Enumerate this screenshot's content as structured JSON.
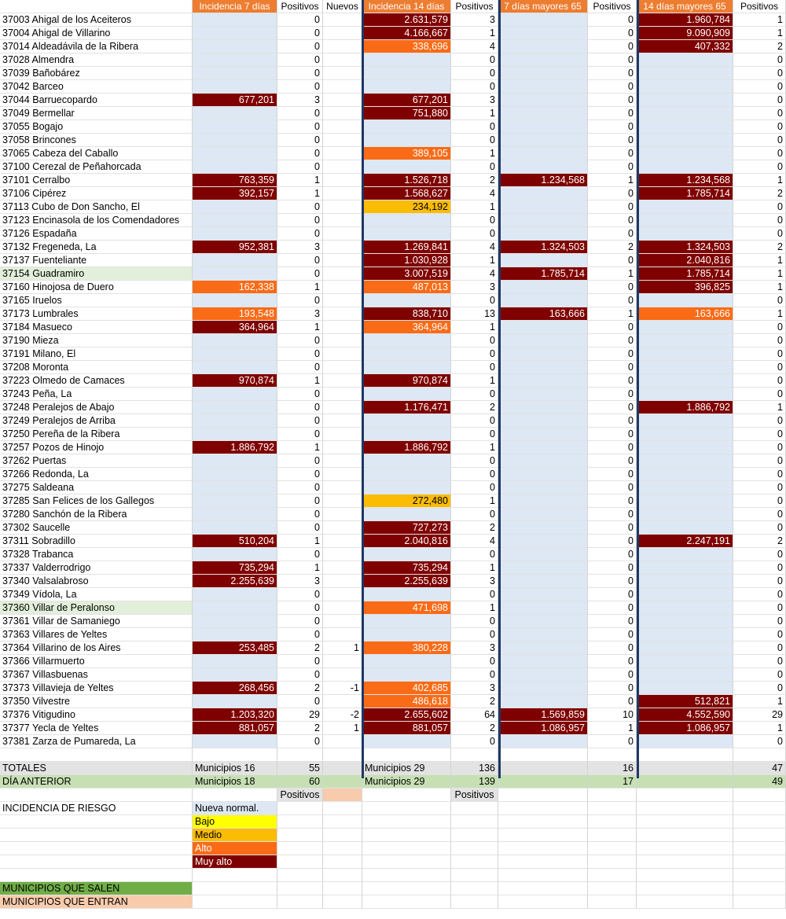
{
  "headers": [
    "",
    "Incidencia 7 días",
    "Positivos",
    "Nuevos",
    "Incidencia 14 días",
    "Positivos",
    "7 días mayores 65",
    "Positivos",
    "14 días mayores 65",
    "Positivos"
  ],
  "colors": {
    "muy_alto": "#7f0000",
    "alto": "#fa6b17",
    "medio": "#fbbc04",
    "bajo": "#ffff00",
    "nueva_normal": "#dde8f4",
    "header": "#ed7d31"
  },
  "rows": [
    {
      "name": "37003 Ahigal de los Aceiteros",
      "i7": "",
      "i7c": "",
      "p7": "0",
      "n": "",
      "i14": "2.631,579",
      "i14c": "muy",
      "p14": "3",
      "m7": "",
      "m7c": "",
      "pm7": "0",
      "m14": "1.960,784",
      "m14c": "muy",
      "pm14": "1"
    },
    {
      "name": "37004 Ahigal de Villarino",
      "i7": "",
      "i7c": "",
      "p7": "0",
      "n": "",
      "i14": "4.166,667",
      "i14c": "muy",
      "p14": "1",
      "m7": "",
      "m7c": "",
      "pm7": "0",
      "m14": "9.090,909",
      "m14c": "muy",
      "pm14": "1"
    },
    {
      "name": "37014 Aldeadávila de la Ribera",
      "i7": "",
      "i7c": "",
      "p7": "0",
      "n": "",
      "i14": "338,696",
      "i14c": "alto",
      "p14": "4",
      "m7": "",
      "m7c": "",
      "pm7": "0",
      "m14": "407,332",
      "m14c": "muy",
      "pm14": "2"
    },
    {
      "name": "37028 Almendra",
      "i7": "",
      "i7c": "",
      "p7": "0",
      "n": "",
      "i14": "",
      "i14c": "",
      "p14": "0",
      "m7": "",
      "m7c": "",
      "pm7": "0",
      "m14": "",
      "m14c": "",
      "pm14": "0"
    },
    {
      "name": "37039 Bañobárez",
      "i7": "",
      "i7c": "",
      "p7": "0",
      "n": "",
      "i14": "",
      "i14c": "",
      "p14": "0",
      "m7": "",
      "m7c": "",
      "pm7": "0",
      "m14": "",
      "m14c": "",
      "pm14": "0"
    },
    {
      "name": "37042 Barceo",
      "i7": "",
      "i7c": "",
      "p7": "0",
      "n": "",
      "i14": "",
      "i14c": "",
      "p14": "0",
      "m7": "",
      "m7c": "",
      "pm7": "0",
      "m14": "",
      "m14c": "",
      "pm14": "0"
    },
    {
      "name": "37044 Barruecopardo",
      "i7": "677,201",
      "i7c": "muy",
      "p7": "3",
      "n": "",
      "i14": "677,201",
      "i14c": "muy",
      "p14": "3",
      "m7": "",
      "m7c": "",
      "pm7": "0",
      "m14": "",
      "m14c": "",
      "pm14": "0"
    },
    {
      "name": "37049 Bermellar",
      "i7": "",
      "i7c": "",
      "p7": "0",
      "n": "",
      "i14": "751,880",
      "i14c": "muy",
      "p14": "1",
      "m7": "",
      "m7c": "",
      "pm7": "0",
      "m14": "",
      "m14c": "",
      "pm14": "0"
    },
    {
      "name": "37055 Bogajo",
      "i7": "",
      "i7c": "",
      "p7": "0",
      "n": "",
      "i14": "",
      "i14c": "",
      "p14": "0",
      "m7": "",
      "m7c": "",
      "pm7": "0",
      "m14": "",
      "m14c": "",
      "pm14": "0"
    },
    {
      "name": "37058 Brincones",
      "i7": "",
      "i7c": "",
      "p7": "0",
      "n": "",
      "i14": "",
      "i14c": "",
      "p14": "0",
      "m7": "",
      "m7c": "",
      "pm7": "0",
      "m14": "",
      "m14c": "",
      "pm14": "0"
    },
    {
      "name": "37065 Cabeza del Caballo",
      "i7": "",
      "i7c": "",
      "p7": "0",
      "n": "",
      "i14": "389,105",
      "i14c": "alto",
      "p14": "1",
      "m7": "",
      "m7c": "",
      "pm7": "0",
      "m14": "",
      "m14c": "",
      "pm14": "0"
    },
    {
      "name": "37100 Cerezal de Peñahorcada",
      "i7": "",
      "i7c": "",
      "p7": "0",
      "n": "",
      "i14": "",
      "i14c": "",
      "p14": "0",
      "m7": "",
      "m7c": "",
      "pm7": "0",
      "m14": "",
      "m14c": "",
      "pm14": "0"
    },
    {
      "name": "37101 Cerralbo",
      "i7": "763,359",
      "i7c": "muy",
      "p7": "1",
      "n": "",
      "i14": "1.526,718",
      "i14c": "muy",
      "p14": "2",
      "m7": "1.234,568",
      "m7c": "muy",
      "pm7": "1",
      "m14": "1.234,568",
      "m14c": "muy",
      "pm14": "1"
    },
    {
      "name": "37106 Cipérez",
      "i7": "392,157",
      "i7c": "muy",
      "p7": "1",
      "n": "",
      "i14": "1.568,627",
      "i14c": "muy",
      "p14": "4",
      "m7": "",
      "m7c": "",
      "pm7": "0",
      "m14": "1.785,714",
      "m14c": "muy",
      "pm14": "2"
    },
    {
      "name": "37113 Cubo de Don Sancho, El",
      "i7": "",
      "i7c": "",
      "p7": "0",
      "n": "",
      "i14": "234,192",
      "i14c": "medio",
      "p14": "1",
      "m7": "",
      "m7c": "",
      "pm7": "0",
      "m14": "",
      "m14c": "",
      "pm14": "0"
    },
    {
      "name": "37123 Encinasola de los Comendadores",
      "i7": "",
      "i7c": "",
      "p7": "0",
      "n": "",
      "i14": "",
      "i14c": "",
      "p14": "0",
      "m7": "",
      "m7c": "",
      "pm7": "0",
      "m14": "",
      "m14c": "",
      "pm14": "0"
    },
    {
      "name": "37126 Espadaña",
      "i7": "",
      "i7c": "",
      "p7": "0",
      "n": "",
      "i14": "",
      "i14c": "",
      "p14": "0",
      "m7": "",
      "m7c": "",
      "pm7": "0",
      "m14": "",
      "m14c": "",
      "pm14": "0"
    },
    {
      "name": "37132 Fregeneda, La",
      "i7": "952,381",
      "i7c": "muy",
      "p7": "3",
      "n": "",
      "i14": "1.269,841",
      "i14c": "muy",
      "p14": "4",
      "m7": "1.324,503",
      "m7c": "muy",
      "pm7": "2",
      "m14": "1.324,503",
      "m14c": "muy",
      "pm14": "2"
    },
    {
      "name": "37137 Fuenteliante",
      "i7": "",
      "i7c": "",
      "p7": "0",
      "n": "",
      "i14": "1.030,928",
      "i14c": "muy",
      "p14": "1",
      "m7": "",
      "m7c": "",
      "pm7": "0",
      "m14": "2.040,816",
      "m14c": "muy",
      "pm14": "1"
    },
    {
      "name": "37154 Guadramiro",
      "i7": "",
      "i7c": "",
      "p7": "0",
      "n": "",
      "i14": "3.007,519",
      "i14c": "muy",
      "p14": "4",
      "m7": "1.785,714",
      "m7c": "muy",
      "pm7": "1",
      "m14": "1.785,714",
      "m14c": "muy",
      "pm14": "1",
      "hl": "green"
    },
    {
      "name": "37160 Hinojosa de Duero",
      "i7": "162,338",
      "i7c": "alto",
      "p7": "1",
      "n": "",
      "i14": "487,013",
      "i14c": "alto",
      "p14": "3",
      "m7": "",
      "m7c": "",
      "pm7": "0",
      "m14": "396,825",
      "m14c": "muy",
      "pm14": "1"
    },
    {
      "name": "37165 Iruelos",
      "i7": "",
      "i7c": "",
      "p7": "0",
      "n": "",
      "i14": "",
      "i14c": "",
      "p14": "0",
      "m7": "",
      "m7c": "",
      "pm7": "0",
      "m14": "",
      "m14c": "",
      "pm14": "0"
    },
    {
      "name": "37173 Lumbrales",
      "i7": "193,548",
      "i7c": "alto",
      "p7": "3",
      "n": "",
      "i14": "838,710",
      "i14c": "muy",
      "p14": "13",
      "m7": "163,666",
      "m7c": "muy",
      "pm7": "1",
      "m14": "163,666",
      "m14c": "alto",
      "pm14": "1"
    },
    {
      "name": "37184 Masueco",
      "i7": "364,964",
      "i7c": "muy",
      "p7": "1",
      "n": "",
      "i14": "364,964",
      "i14c": "alto",
      "p14": "1",
      "m7": "",
      "m7c": "",
      "pm7": "0",
      "m14": "",
      "m14c": "",
      "pm14": "0"
    },
    {
      "name": "37190 Mieza",
      "i7": "",
      "i7c": "",
      "p7": "0",
      "n": "",
      "i14": "",
      "i14c": "",
      "p14": "0",
      "m7": "",
      "m7c": "",
      "pm7": "0",
      "m14": "",
      "m14c": "",
      "pm14": "0"
    },
    {
      "name": "37191 Milano, El",
      "i7": "",
      "i7c": "",
      "p7": "0",
      "n": "",
      "i14": "",
      "i14c": "",
      "p14": "0",
      "m7": "",
      "m7c": "",
      "pm7": "0",
      "m14": "",
      "m14c": "",
      "pm14": "0"
    },
    {
      "name": "37208 Moronta",
      "i7": "",
      "i7c": "",
      "p7": "0",
      "n": "",
      "i14": "",
      "i14c": "",
      "p14": "0",
      "m7": "",
      "m7c": "",
      "pm7": "0",
      "m14": "",
      "m14c": "",
      "pm14": "0"
    },
    {
      "name": "37223 Olmedo de Camaces",
      "i7": "970,874",
      "i7c": "muy",
      "p7": "1",
      "n": "",
      "i14": "970,874",
      "i14c": "muy",
      "p14": "1",
      "m7": "",
      "m7c": "",
      "pm7": "0",
      "m14": "",
      "m14c": "",
      "pm14": "0"
    },
    {
      "name": "37243 Peña, La",
      "i7": "",
      "i7c": "",
      "p7": "0",
      "n": "",
      "i14": "",
      "i14c": "",
      "p14": "0",
      "m7": "",
      "m7c": "",
      "pm7": "0",
      "m14": "",
      "m14c": "",
      "pm14": "0"
    },
    {
      "name": "37248 Peralejos de Abajo",
      "i7": "",
      "i7c": "",
      "p7": "0",
      "n": "",
      "i14": "1.176,471",
      "i14c": "muy",
      "p14": "2",
      "m7": "",
      "m7c": "",
      "pm7": "0",
      "m14": "1.886,792",
      "m14c": "muy",
      "pm14": "1"
    },
    {
      "name": "37249 Peralejos de Arriba",
      "i7": "",
      "i7c": "",
      "p7": "0",
      "n": "",
      "i14": "",
      "i14c": "",
      "p14": "0",
      "m7": "",
      "m7c": "",
      "pm7": "0",
      "m14": "",
      "m14c": "",
      "pm14": "0"
    },
    {
      "name": "37250 Pereña de la Ribera",
      "i7": "",
      "i7c": "",
      "p7": "0",
      "n": "",
      "i14": "",
      "i14c": "",
      "p14": "0",
      "m7": "",
      "m7c": "",
      "pm7": "0",
      "m14": "",
      "m14c": "",
      "pm14": "0"
    },
    {
      "name": "37257 Pozos de Hinojo",
      "i7": "1.886,792",
      "i7c": "muy",
      "p7": "1",
      "n": "",
      "i14": "1.886,792",
      "i14c": "muy",
      "p14": "1",
      "m7": "",
      "m7c": "",
      "pm7": "0",
      "m14": "",
      "m14c": "",
      "pm14": "0"
    },
    {
      "name": "37262 Puertas",
      "i7": "",
      "i7c": "",
      "p7": "0",
      "n": "",
      "i14": "",
      "i14c": "",
      "p14": "0",
      "m7": "",
      "m7c": "",
      "pm7": "0",
      "m14": "",
      "m14c": "",
      "pm14": "0"
    },
    {
      "name": "37266 Redonda, La",
      "i7": "",
      "i7c": "",
      "p7": "0",
      "n": "",
      "i14": "",
      "i14c": "",
      "p14": "0",
      "m7": "",
      "m7c": "",
      "pm7": "0",
      "m14": "",
      "m14c": "",
      "pm14": "0"
    },
    {
      "name": "37275 Saldeana",
      "i7": "",
      "i7c": "",
      "p7": "0",
      "n": "",
      "i14": "",
      "i14c": "",
      "p14": "0",
      "m7": "",
      "m7c": "",
      "pm7": "0",
      "m14": "",
      "m14c": "",
      "pm14": "0"
    },
    {
      "name": "37285 San Felices de los Gallegos",
      "i7": "",
      "i7c": "",
      "p7": "0",
      "n": "",
      "i14": "272,480",
      "i14c": "medio",
      "p14": "1",
      "m7": "",
      "m7c": "",
      "pm7": "0",
      "m14": "",
      "m14c": "",
      "pm14": "0"
    },
    {
      "name": "37280 Sanchón de la Ribera",
      "i7": "",
      "i7c": "",
      "p7": "0",
      "n": "",
      "i14": "",
      "i14c": "",
      "p14": "0",
      "m7": "",
      "m7c": "",
      "pm7": "0",
      "m14": "",
      "m14c": "",
      "pm14": "0"
    },
    {
      "name": "37302 Saucelle",
      "i7": "",
      "i7c": "",
      "p7": "0",
      "n": "",
      "i14": "727,273",
      "i14c": "muy",
      "p14": "2",
      "m7": "",
      "m7c": "",
      "pm7": "0",
      "m14": "",
      "m14c": "",
      "pm14": "0"
    },
    {
      "name": "37311 Sobradillo",
      "i7": "510,204",
      "i7c": "muy",
      "p7": "1",
      "n": "",
      "i14": "2.040,816",
      "i14c": "muy",
      "p14": "4",
      "m7": "",
      "m7c": "",
      "pm7": "0",
      "m14": "2.247,191",
      "m14c": "muy",
      "pm14": "2"
    },
    {
      "name": "37328 Trabanca",
      "i7": "",
      "i7c": "",
      "p7": "0",
      "n": "",
      "i14": "",
      "i14c": "",
      "p14": "0",
      "m7": "",
      "m7c": "",
      "pm7": "0",
      "m14": "",
      "m14c": "",
      "pm14": "0"
    },
    {
      "name": "37337 Valderrodrigo",
      "i7": "735,294",
      "i7c": "muy",
      "p7": "1",
      "n": "",
      "i14": "735,294",
      "i14c": "muy",
      "p14": "1",
      "m7": "",
      "m7c": "",
      "pm7": "0",
      "m14": "",
      "m14c": "",
      "pm14": "0"
    },
    {
      "name": "37340 Valsalabroso",
      "i7": "2.255,639",
      "i7c": "muy",
      "p7": "3",
      "n": "",
      "i14": "2.255,639",
      "i14c": "muy",
      "p14": "3",
      "m7": "",
      "m7c": "",
      "pm7": "0",
      "m14": "",
      "m14c": "",
      "pm14": "0"
    },
    {
      "name": "37349 Vídola, La",
      "i7": "",
      "i7c": "",
      "p7": "0",
      "n": "",
      "i14": "",
      "i14c": "",
      "p14": "0",
      "m7": "",
      "m7c": "",
      "pm7": "0",
      "m14": "",
      "m14c": "",
      "pm14": "0"
    },
    {
      "name": "37360 Villar de Peralonso",
      "i7": "",
      "i7c": "",
      "p7": "0",
      "n": "",
      "i14": "471,698",
      "i14c": "alto",
      "p14": "1",
      "m7": "",
      "m7c": "",
      "pm7": "0",
      "m14": "",
      "m14c": "",
      "pm14": "0",
      "hl": "green"
    },
    {
      "name": "37361 Villar de Samaniego",
      "i7": "",
      "i7c": "",
      "p7": "0",
      "n": "",
      "i14": "",
      "i14c": "",
      "p14": "0",
      "m7": "",
      "m7c": "",
      "pm7": "0",
      "m14": "",
      "m14c": "",
      "pm14": "0"
    },
    {
      "name": "37363 Villares de Yeltes",
      "i7": "",
      "i7c": "",
      "p7": "0",
      "n": "",
      "i14": "",
      "i14c": "",
      "p14": "0",
      "m7": "",
      "m7c": "",
      "pm7": "0",
      "m14": "",
      "m14c": "",
      "pm14": "0"
    },
    {
      "name": "37364 Villarino de los Aires",
      "i7": "253,485",
      "i7c": "muy",
      "p7": "2",
      "n": "1",
      "i14": "380,228",
      "i14c": "alto",
      "p14": "3",
      "m7": "",
      "m7c": "",
      "pm7": "0",
      "m14": "",
      "m14c": "",
      "pm14": "0"
    },
    {
      "name": "37366 Villarmuerto",
      "i7": "",
      "i7c": "",
      "p7": "0",
      "n": "",
      "i14": "",
      "i14c": "",
      "p14": "0",
      "m7": "",
      "m7c": "",
      "pm7": "0",
      "m14": "",
      "m14c": "",
      "pm14": "0"
    },
    {
      "name": "37367 Villasbuenas",
      "i7": "",
      "i7c": "",
      "p7": "0",
      "n": "",
      "i14": "",
      "i14c": "",
      "p14": "0",
      "m7": "",
      "m7c": "",
      "pm7": "0",
      "m14": "",
      "m14c": "",
      "pm14": "0"
    },
    {
      "name": "37373 Villavieja de Yeltes",
      "i7": "268,456",
      "i7c": "muy",
      "p7": "2",
      "n": "-1",
      "i14": "402,685",
      "i14c": "alto",
      "p14": "3",
      "m7": "",
      "m7c": "",
      "pm7": "0",
      "m14": "",
      "m14c": "",
      "pm14": "0"
    },
    {
      "name": "37350 Vilvestre",
      "i7": "",
      "i7c": "",
      "p7": "0",
      "n": "",
      "i14": "486,618",
      "i14c": "alto",
      "p14": "2",
      "m7": "",
      "m7c": "",
      "pm7": "0",
      "m14": "512,821",
      "m14c": "muy",
      "pm14": "1"
    },
    {
      "name": "37376 Vitigudino",
      "i7": "1.203,320",
      "i7c": "muy",
      "p7": "29",
      "n": "-2",
      "i14": "2.655,602",
      "i14c": "muy",
      "p14": "64",
      "m7": "1.569,859",
      "m7c": "muy",
      "pm7": "10",
      "m14": "4.552,590",
      "m14c": "muy",
      "pm14": "29"
    },
    {
      "name": "37377 Yecla de Yeltes",
      "i7": "881,057",
      "i7c": "muy",
      "p7": "2",
      "n": "1",
      "i14": "881,057",
      "i14c": "muy",
      "p14": "2",
      "m7": "1.086,957",
      "m7c": "muy",
      "pm7": "1",
      "m14": "1.086,957",
      "m14c": "muy",
      "pm14": "1"
    },
    {
      "name": "37381 Zarza de Pumareda, La",
      "i7": "",
      "i7c": "",
      "p7": "0",
      "n": "",
      "i14": "",
      "i14c": "",
      "p14": "0",
      "m7": "",
      "m7c": "",
      "pm7": "0",
      "m14": "",
      "m14c": "",
      "pm14": "0"
    }
  ],
  "totales": {
    "label": "TOTALES",
    "m7": "Municipios 16",
    "p7": "55",
    "m14": "Municipios 29",
    "p14": "136",
    "pm7": "16",
    "pm14": "47"
  },
  "anterior": {
    "label": "DÍA ANTERIOR",
    "m7": "Municipios 18",
    "p7": "60",
    "m14": "Municipios 29",
    "p14": "139",
    "pm7": "17",
    "pm14": "49"
  },
  "positivos_label": "Positivos",
  "legend": {
    "title": "INCIDENCIA DE RIESGO",
    "items": [
      {
        "label": "Nueva normal.",
        "cls": "nueva"
      },
      {
        "label": "Bajo",
        "cls": "bajo"
      },
      {
        "label": "Medio",
        "cls": "medio"
      },
      {
        "label": "Alto",
        "cls": "alto"
      },
      {
        "label": "Muy alto",
        "cls": "muy"
      }
    ]
  },
  "municipios_salen": "MUNICIPIOS QUE SALEN",
  "municipios_entran": "MUNICIPIOS QUE ENTRAN"
}
